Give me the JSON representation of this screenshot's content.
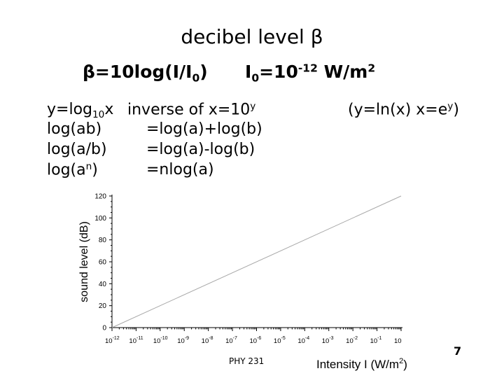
{
  "slide": {
    "title": "decibel level β",
    "beta_formula": {
      "lhs": "β=10log(I/I",
      "sub": "0",
      "close": ")"
    },
    "i0_formula": {
      "base": "I",
      "sub": "0",
      "eq": "=10",
      "exp": "-12",
      "unit": " W/m",
      "unit_sup": "2"
    },
    "left_col": [
      {
        "pre": "y=log",
        "sub": "10",
        "post": "x"
      },
      {
        "pre": "log(ab)"
      },
      {
        "pre": "log(a/b)"
      },
      {
        "pre": "log(a",
        "sup": "n",
        "post": ")"
      }
    ],
    "mid_col": [
      {
        "pre": "inverse of x=10",
        "sup": "y"
      },
      {
        "pre": "=log(a)+log(b)"
      },
      {
        "pre": "=log(a)-log(b)"
      },
      {
        "pre": "=nlog(a)"
      }
    ],
    "natural_log": {
      "pre": "(y=ln(x)  x=e",
      "sup": "y",
      "post": ")"
    },
    "footer": "PHY 231",
    "slide_number": "7"
  },
  "chart_data": {
    "type": "line",
    "xlabel": "Intensity I (W/m",
    "xlabel_sup": "2",
    "xlabel_close": ")",
    "ylabel": "sound level (dB)",
    "x_scale": "log",
    "x_tick_base": "10",
    "x_tick_exponents": [
      "-12",
      "-11",
      "-10",
      "-9",
      "-8",
      "-7",
      "-6",
      "-5",
      "-4",
      "-3",
      "-2",
      "-1",
      "1"
    ],
    "x_tick_values": [
      1e-12,
      1e-11,
      1e-10,
      1e-09,
      1e-08,
      1e-07,
      1e-06,
      1e-05,
      0.0001,
      0.001,
      0.01,
      0.1,
      1
    ],
    "xlim": [
      1e-12,
      1
    ],
    "y_ticks": [
      0,
      20,
      40,
      60,
      80,
      100,
      120
    ],
    "ylim": [
      0,
      120
    ],
    "series": [
      {
        "x": [
          1e-12,
          1
        ],
        "y": [
          0,
          120
        ],
        "color": "#a8a8a8"
      }
    ],
    "grid": false,
    "colors": {
      "line": "#a8a8a8",
      "axis": "#000000"
    }
  }
}
